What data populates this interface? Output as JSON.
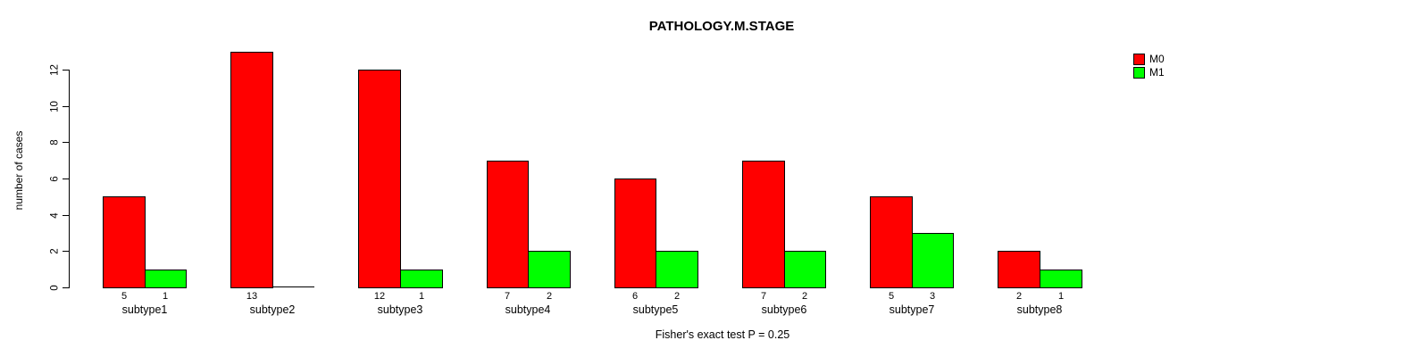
{
  "chart_data": {
    "type": "bar",
    "title": "PATHOLOGY.M.STAGE",
    "ylabel": "number of cases",
    "xlabel": "",
    "footnote": "Fisher's exact test P = 0.25",
    "categories": [
      "subtype1",
      "subtype2",
      "subtype3",
      "subtype4",
      "subtype5",
      "subtype6",
      "subtype7",
      "subtype8"
    ],
    "series": [
      {
        "name": "M0",
        "color": "#ff0000",
        "values": [
          5,
          13,
          12,
          7,
          6,
          7,
          5,
          2
        ]
      },
      {
        "name": "M1",
        "color": "#00ff00",
        "values": [
          1,
          0,
          1,
          2,
          2,
          2,
          3,
          1
        ]
      }
    ],
    "bar_value_labels_shown": [
      [
        "5",
        "1"
      ],
      [
        "13",
        ""
      ],
      [
        "12",
        "1"
      ],
      [
        "7",
        "2"
      ],
      [
        "6",
        "2"
      ],
      [
        "7",
        "2"
      ],
      [
        "5",
        "3"
      ],
      [
        "2",
        "1"
      ]
    ],
    "yticks": [
      0,
      2,
      4,
      6,
      8,
      10,
      12
    ],
    "ylim": [
      0,
      13
    ],
    "grid": false,
    "legend_position": "outside-top-right",
    "background_color": "#ffffff",
    "text_color": "#000000"
  }
}
